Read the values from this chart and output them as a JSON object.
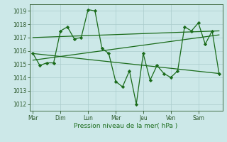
{
  "background_color": "#cce8e8",
  "grid_color": "#aacccc",
  "line_color": "#1a6b1a",
  "xlabel": "Pression niveau de la mer( hPa )",
  "ylim": [
    1011.5,
    1019.5
  ],
  "yticks": [
    1012,
    1013,
    1014,
    1015,
    1016,
    1017,
    1018,
    1019
  ],
  "x_day_labels": [
    "Mar",
    "Dim",
    "Lun",
    "Mer",
    "Jeu",
    "Ven",
    "Sam"
  ],
  "x_day_positions": [
    0,
    4,
    8,
    12,
    16,
    20,
    24
  ],
  "xlim": [
    -0.5,
    27.5
  ],
  "main_series": {
    "x": [
      0,
      1,
      2,
      3,
      4,
      5,
      6,
      7,
      8,
      9,
      10,
      11,
      12,
      13,
      14,
      15,
      16,
      17,
      18,
      19,
      20,
      21,
      22,
      23,
      24,
      25,
      26,
      27
    ],
    "y": [
      1015.8,
      1014.9,
      1015.1,
      1015.1,
      1017.5,
      1017.8,
      1016.9,
      1017.0,
      1019.1,
      1019.0,
      1016.2,
      1015.8,
      1013.7,
      1013.3,
      1014.5,
      1012.0,
      1015.8,
      1013.8,
      1014.9,
      1014.3,
      1014.0,
      1014.5,
      1017.8,
      1017.5,
      1018.1,
      1016.5,
      1017.5,
      1014.3
    ]
  },
  "trend_lines": [
    {
      "x": [
        0,
        27
      ],
      "y": [
        1015.8,
        1014.3
      ]
    },
    {
      "x": [
        0,
        27
      ],
      "y": [
        1015.3,
        1017.2
      ]
    },
    {
      "x": [
        0,
        27
      ],
      "y": [
        1017.0,
        1017.5
      ]
    }
  ]
}
